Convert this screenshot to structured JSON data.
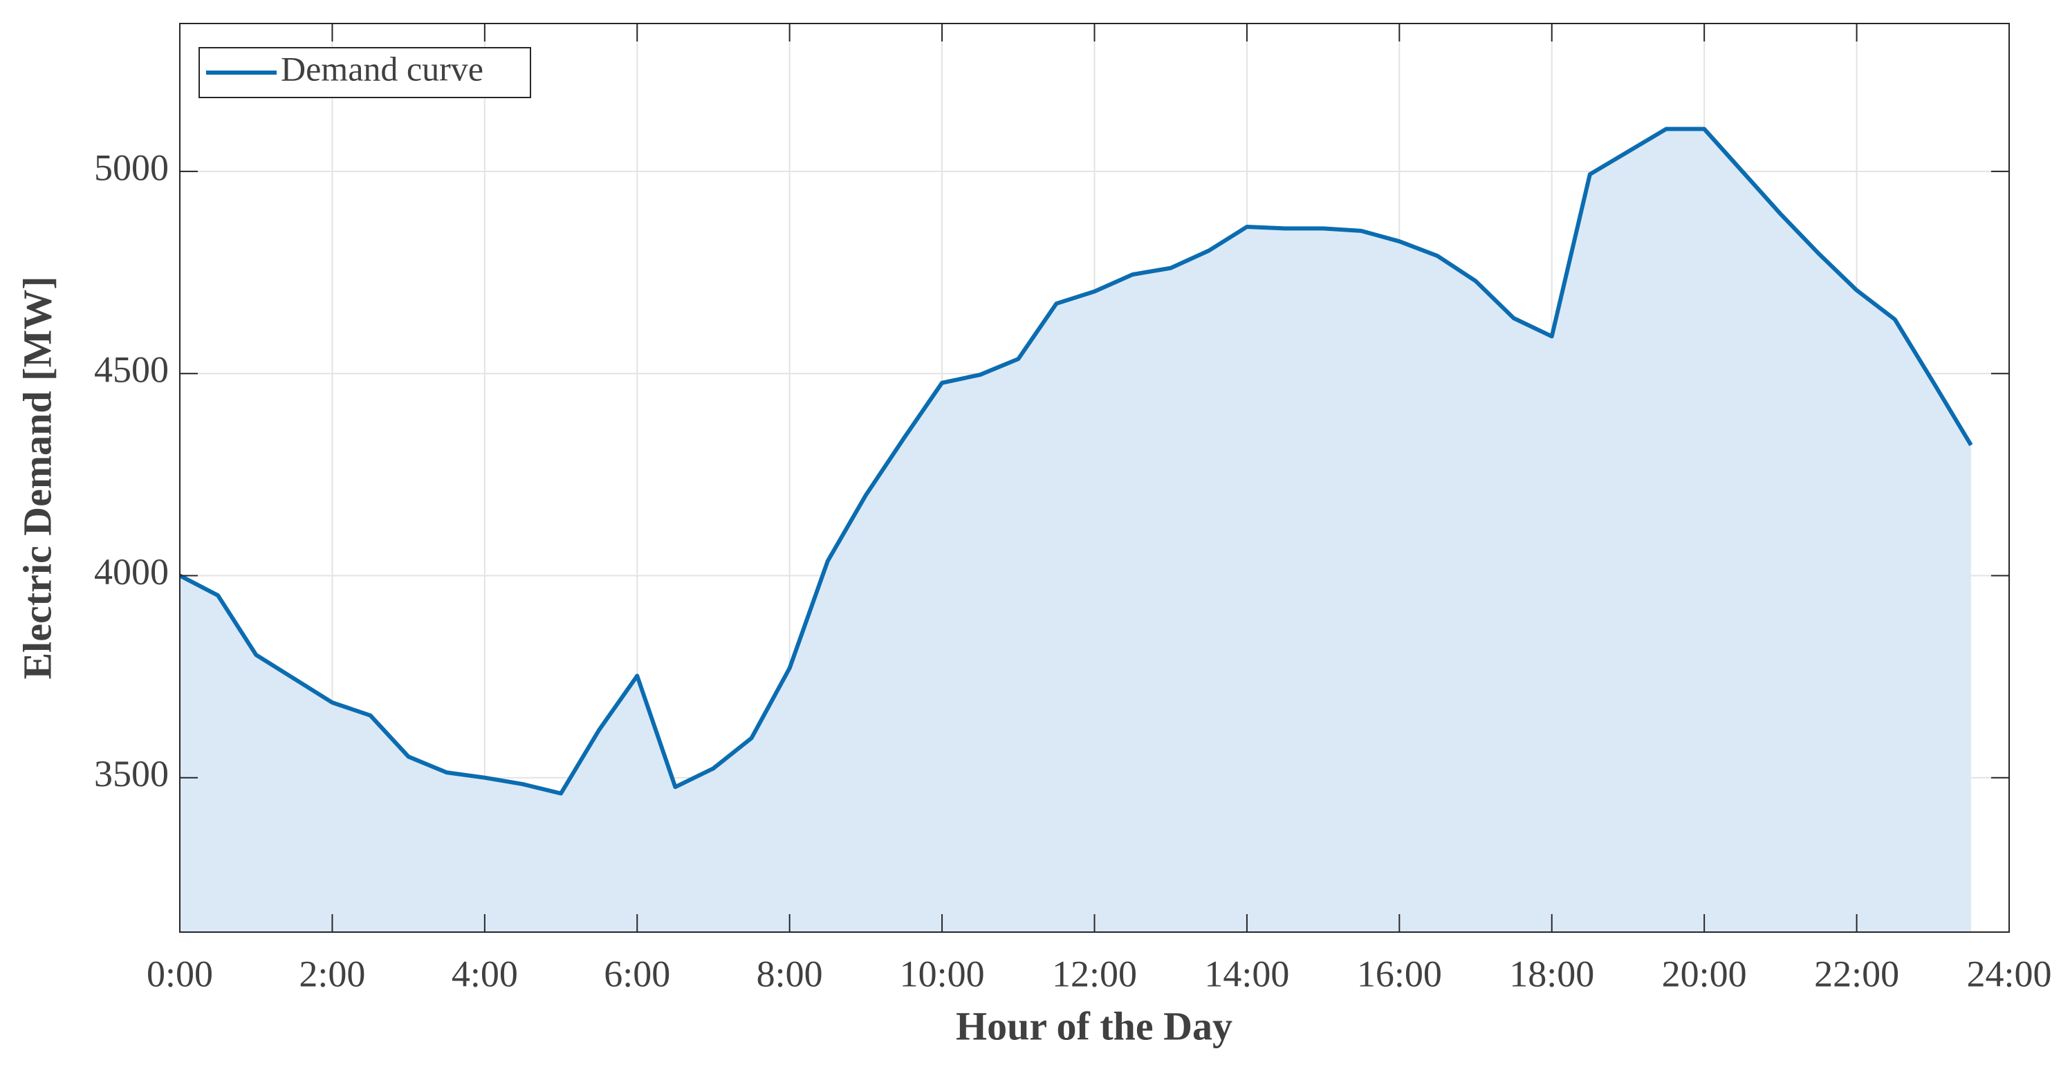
{
  "chart_data": {
    "type": "area",
    "xlabel": "Hour of the Day",
    "ylabel": "Electric Demand [MW]",
    "x": [
      0,
      0.5,
      1,
      1.5,
      2,
      2.5,
      3,
      3.5,
      4,
      4.5,
      5,
      5.5,
      6,
      6.5,
      7,
      7.5,
      8,
      8.5,
      9,
      9.5,
      10,
      10.5,
      11,
      11.5,
      12,
      12.5,
      13,
      13.5,
      14,
      14.5,
      15,
      15.5,
      16,
      16.5,
      17,
      17.5,
      18,
      18.5,
      19,
      19.5,
      20,
      20.5,
      21,
      21.5,
      22,
      22.5,
      23,
      23.5
    ],
    "series": [
      {
        "name": "Demand curve",
        "color": "#0b6cb0",
        "fill": "#dbe9f7",
        "values": [
          4000,
          3951,
          3804,
          3745,
          3686,
          3654,
          3552,
          3513,
          3500,
          3484,
          3461,
          3618,
          3752,
          3477,
          3523,
          3598,
          3771,
          4036,
          4199,
          4340,
          4477,
          4497,
          4536,
          4673,
          4703,
          4745,
          4761,
          4804,
          4863,
          4859,
          4859,
          4853,
          4827,
          4791,
          4729,
          4637,
          4592,
          4993,
          5049,
          5105,
          5105,
          5000,
          4895,
          4797,
          4706,
          4634,
          4480,
          4323
        ]
      }
    ],
    "xlim": [
      0,
      24
    ],
    "xticks": [
      {
        "value": 0,
        "label": "0:00"
      },
      {
        "value": 2,
        "label": "2:00"
      },
      {
        "value": 4,
        "label": "4:00"
      },
      {
        "value": 6,
        "label": "6:00"
      },
      {
        "value": 8,
        "label": "8:00"
      },
      {
        "value": 10,
        "label": "10:00"
      },
      {
        "value": 12,
        "label": "12:00"
      },
      {
        "value": 14,
        "label": "14:00"
      },
      {
        "value": 16,
        "label": "16:00"
      },
      {
        "value": 18,
        "label": "18:00"
      },
      {
        "value": 20,
        "label": "20:00"
      },
      {
        "value": 22,
        "label": "22:00"
      },
      {
        "value": 24,
        "label": "24:00"
      }
    ],
    "ylim": [
      3118,
      5366
    ],
    "yticks": [
      3500,
      4000,
      4500,
      5000
    ],
    "grid": true,
    "legend": "upper left"
  }
}
